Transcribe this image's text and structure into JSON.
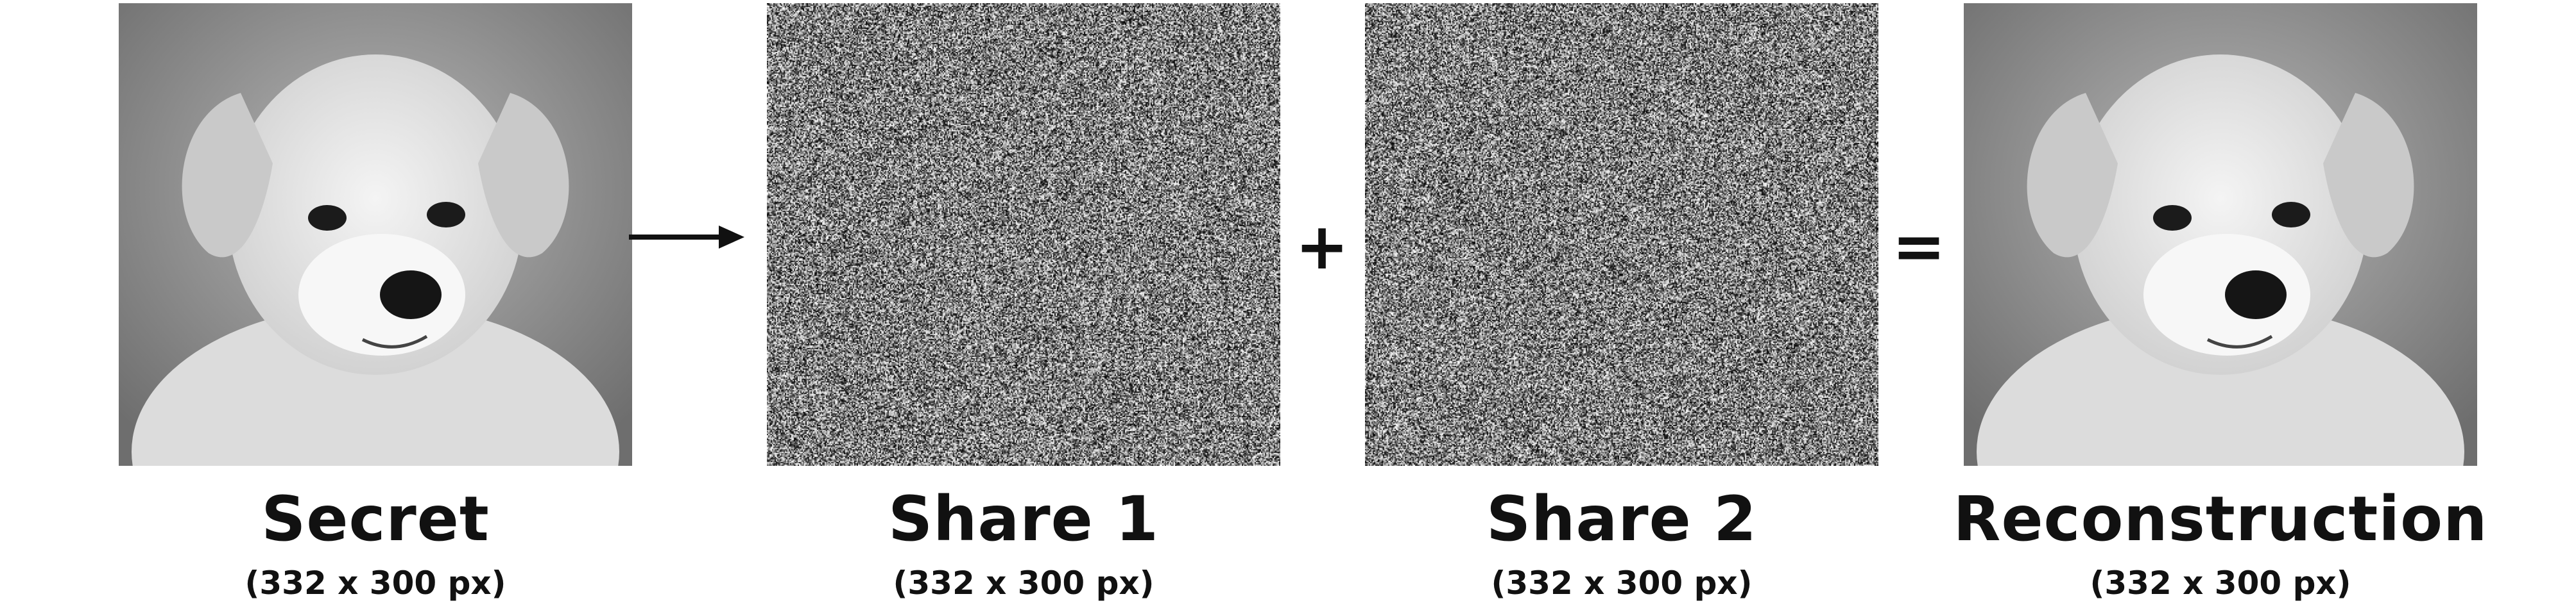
{
  "panels": [
    {
      "title": "Secret",
      "size": "(332 x 300 px)"
    },
    {
      "title": "Share 1",
      "size": "(332 x 300 px)"
    },
    {
      "title": "Share 2",
      "size": "(332 x 300 px)"
    },
    {
      "title": "Reconstruction",
      "size": "(332 x 300 px)"
    }
  ],
  "operators": {
    "plus": "+",
    "equals": "="
  },
  "icons": {
    "flow": "arrow-right-icon"
  },
  "colors": {
    "text": "#111111",
    "background": "#ffffff"
  }
}
